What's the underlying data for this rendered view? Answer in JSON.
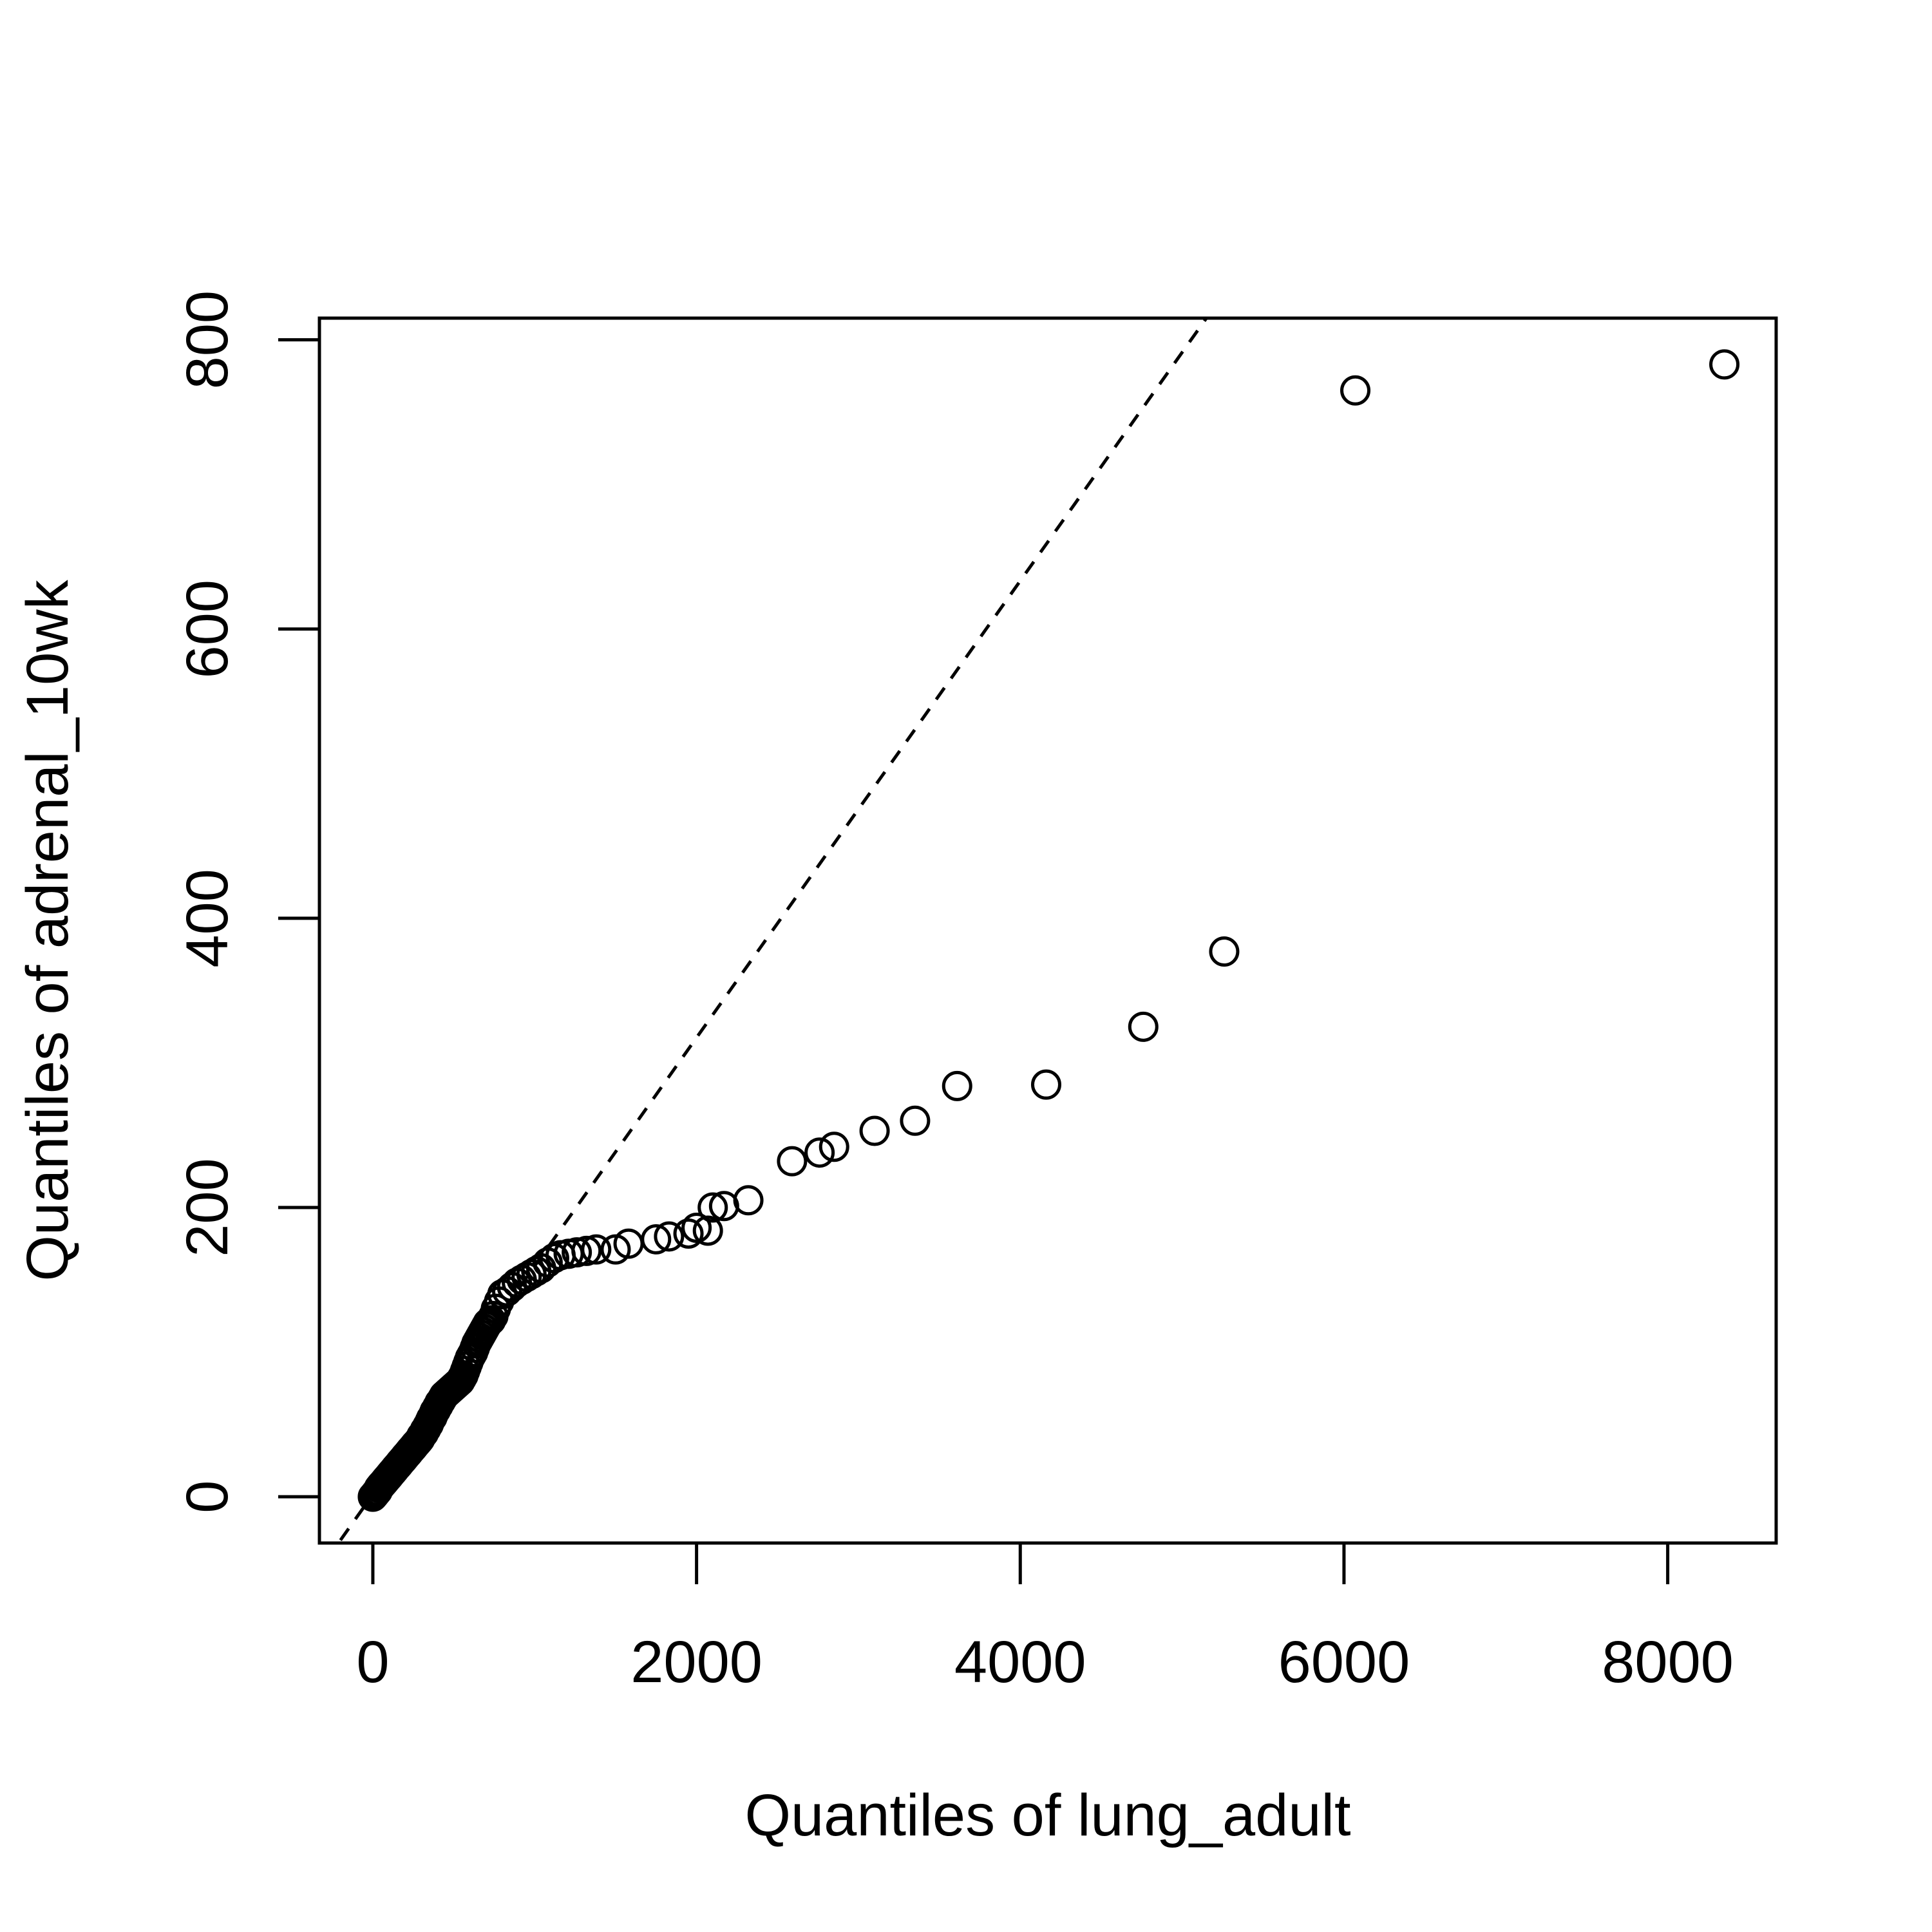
{
  "chart_data": {
    "type": "scatter",
    "title": "",
    "xlabel": "Quantiles of lung_adult",
    "ylabel": "Quantiles of adrenal_10wk",
    "xlim": [
      -330,
      8670
    ],
    "ylim": [
      -32,
      815
    ],
    "x_ticks": [
      0,
      2000,
      4000,
      6000,
      8000
    ],
    "x_tick_labels": [
      "0",
      "2000",
      "4000",
      "6000",
      "8000"
    ],
    "y_ticks": [
      0,
      200,
      400,
      600,
      800
    ],
    "y_tick_labels": [
      "0",
      "200",
      "400",
      "600",
      "800"
    ],
    "grid": false,
    "legend": "none",
    "reference_line": {
      "style": "dashed",
      "points": [
        [
          -200,
          -30
        ],
        [
          5150,
          815
        ]
      ]
    },
    "series": [
      {
        "marker": "open-circle",
        "color": "#000000",
        "points": [
          [
            0,
            0
          ],
          [
            8,
            1
          ],
          [
            15,
            2
          ],
          [
            22,
            3
          ],
          [
            30,
            4
          ],
          [
            38,
            6
          ],
          [
            45,
            7
          ],
          [
            52,
            8
          ],
          [
            60,
            9
          ],
          [
            68,
            10
          ],
          [
            75,
            11
          ],
          [
            82,
            12
          ],
          [
            90,
            13
          ],
          [
            98,
            14
          ],
          [
            105,
            15
          ],
          [
            112,
            16
          ],
          [
            120,
            17
          ],
          [
            128,
            18
          ],
          [
            135,
            19
          ],
          [
            142,
            20
          ],
          [
            150,
            21
          ],
          [
            158,
            22
          ],
          [
            165,
            23
          ],
          [
            172,
            24
          ],
          [
            180,
            25
          ],
          [
            188,
            26
          ],
          [
            195,
            27
          ],
          [
            202,
            28
          ],
          [
            210,
            29
          ],
          [
            218,
            30
          ],
          [
            225,
            31
          ],
          [
            232,
            32
          ],
          [
            240,
            33
          ],
          [
            248,
            34
          ],
          [
            255,
            35
          ],
          [
            262,
            36
          ],
          [
            270,
            37
          ],
          [
            278,
            38
          ],
          [
            285,
            39
          ],
          [
            292,
            40
          ],
          [
            300,
            42
          ],
          [
            308,
            43
          ],
          [
            315,
            44
          ],
          [
            322,
            46
          ],
          [
            330,
            47
          ],
          [
            338,
            49
          ],
          [
            345,
            50
          ],
          [
            352,
            52
          ],
          [
            360,
            54
          ],
          [
            368,
            55
          ],
          [
            375,
            57
          ],
          [
            382,
            59
          ],
          [
            390,
            60
          ],
          [
            398,
            62
          ],
          [
            405,
            63
          ],
          [
            412,
            65
          ],
          [
            420,
            66
          ],
          [
            430,
            68
          ],
          [
            440,
            70
          ],
          [
            450,
            71
          ],
          [
            460,
            72
          ],
          [
            470,
            73
          ],
          [
            480,
            74
          ],
          [
            490,
            75
          ],
          [
            500,
            76
          ],
          [
            510,
            77
          ],
          [
            520,
            78
          ],
          [
            530,
            79
          ],
          [
            540,
            80
          ],
          [
            550,
            82
          ],
          [
            560,
            84
          ],
          [
            570,
            87
          ],
          [
            580,
            90
          ],
          [
            590,
            93
          ],
          [
            600,
            96
          ],
          [
            610,
            98
          ],
          [
            620,
            100
          ],
          [
            630,
            103
          ],
          [
            640,
            106
          ],
          [
            650,
            108
          ],
          [
            660,
            110
          ],
          [
            670,
            112
          ],
          [
            680,
            114
          ],
          [
            690,
            116
          ],
          [
            700,
            118
          ],
          [
            710,
            120
          ],
          [
            720,
            121
          ],
          [
            730,
            122
          ],
          [
            745,
            125
          ],
          [
            760,
            130
          ],
          [
            780,
            135
          ],
          [
            800,
            140
          ],
          [
            830,
            142
          ],
          [
            860,
            145
          ],
          [
            890,
            148
          ],
          [
            920,
            150
          ],
          [
            950,
            152
          ],
          [
            980,
            154
          ],
          [
            1010,
            156
          ],
          [
            1040,
            158
          ],
          [
            1080,
            162
          ],
          [
            1120,
            165
          ],
          [
            1160,
            167
          ],
          [
            1210,
            168
          ],
          [
            1260,
            169
          ],
          [
            1320,
            170
          ],
          [
            1380,
            171
          ],
          [
            1500,
            171
          ],
          [
            1580,
            175
          ],
          [
            1750,
            178
          ],
          [
            1830,
            180
          ],
          [
            1950,
            182
          ],
          [
            2000,
            186
          ],
          [
            2070,
            184
          ],
          [
            2100,
            200
          ],
          [
            2170,
            201
          ],
          [
            2320,
            205
          ],
          [
            2590,
            232
          ],
          [
            2760,
            238
          ],
          [
            2850,
            242
          ],
          [
            3100,
            253
          ],
          [
            3350,
            260
          ],
          [
            3610,
            284
          ],
          [
            4160,
            285
          ],
          [
            4760,
            325
          ],
          [
            5260,
            377
          ],
          [
            6070,
            765
          ],
          [
            8350,
            783
          ]
        ]
      }
    ]
  }
}
